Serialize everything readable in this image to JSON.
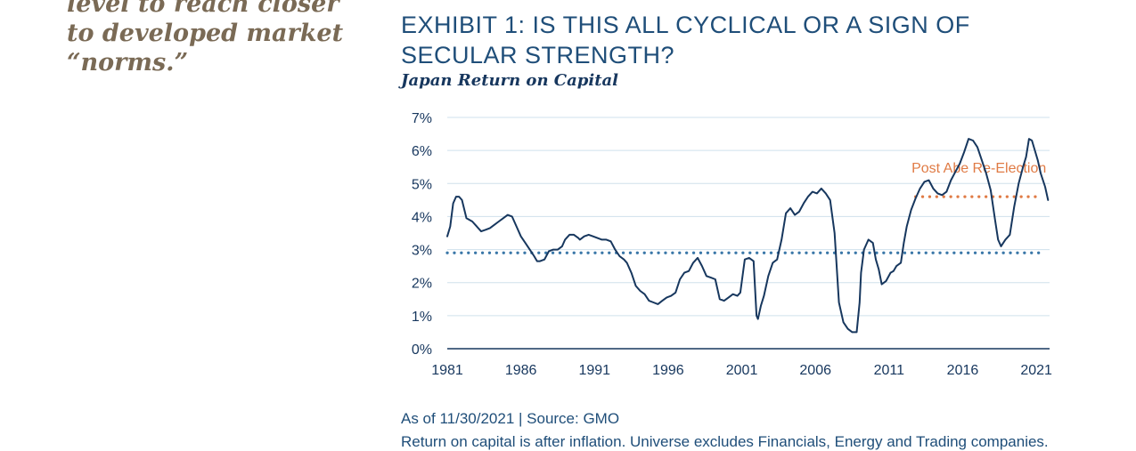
{
  "pullquote": {
    "lines": [
      "level to reach closer",
      "to developed market",
      "“norms.”"
    ]
  },
  "exhibit": {
    "title": "EXHIBIT 1: IS THIS ALL CYCLICAL OR A SIGN OF SECULAR STRENGTH?",
    "subtitle": "Japan Return on Capital",
    "source": "As of 11/30/2021 | Source: GMO",
    "footnote": "Return on capital is after inflation. Universe excludes Financials, Energy and Trading companies."
  },
  "colors": {
    "line": "#17375e",
    "average": "#3a77a8",
    "post_abe": "#e07b45",
    "grid": "#cfe0ec",
    "axis": "#17375e",
    "annotation": "#e07b45"
  },
  "chart_data": {
    "type": "line",
    "title": "Japan Return on Capital",
    "xlabel": "",
    "ylabel": "",
    "xlim": [
      1981,
      2021.9
    ],
    "ylim": [
      0,
      7
    ],
    "x_ticks": [
      1981,
      1986,
      1991,
      1996,
      2001,
      2006,
      2011,
      2016,
      2021
    ],
    "x_tick_labels": [
      "1981",
      "1986",
      "1991",
      "1996",
      "2001",
      "2006",
      "2011",
      "2016",
      "2021"
    ],
    "y_ticks": [
      0,
      1,
      2,
      3,
      4,
      5,
      6,
      7
    ],
    "y_tick_labels": [
      "0%",
      "1%",
      "2%",
      "3%",
      "4%",
      "5%",
      "6%",
      "7%"
    ],
    "grid": "horizontal",
    "series": [
      {
        "values_x": [
          1981.0,
          1981.2,
          1981.4,
          1981.6,
          1981.8,
          1982.0,
          1982.3,
          1982.5,
          1982.7,
          1983.0,
          1983.3,
          1983.6,
          1983.9,
          1984.2,
          1984.5,
          1984.8,
          1985.1,
          1985.4,
          1985.7,
          1986.0,
          1986.3,
          1986.6,
          1986.9,
          1987.1,
          1987.3,
          1987.6,
          1987.9,
          1988.2,
          1988.5,
          1988.8,
          1989.0,
          1989.3,
          1989.6,
          1989.9,
          1990.0,
          1990.3,
          1990.6,
          1990.9,
          1991.2,
          1991.5,
          1991.8,
          1992.1,
          1992.4,
          1992.7,
          1993.0,
          1993.2,
          1993.5,
          1993.8,
          1994.1,
          1994.4,
          1994.7,
          1995.0,
          1995.3,
          1995.6,
          1995.9,
          1996.2,
          1996.5,
          1996.8,
          1997.1,
          1997.4,
          1997.7,
          1998.0,
          1998.3,
          1998.6,
          1998.9,
          1999.2,
          1999.5,
          1999.8,
          2000.1,
          2000.4,
          2000.7,
          2000.9,
          2001.2,
          2001.5,
          2001.8,
          2002.0,
          2002.1,
          2002.3,
          2002.5,
          2002.8,
          2003.1,
          2003.4,
          2003.7,
          2004.0,
          2004.3,
          2004.6,
          2004.9,
          2005.2,
          2005.5,
          2005.8,
          2006.1,
          2006.4,
          2006.7,
          2007.0,
          2007.3,
          2007.6,
          2007.9,
          2008.2,
          2008.5,
          2008.8,
          2009.0,
          2009.1,
          2009.3,
          2009.6,
          2009.9,
          2010.1,
          2010.3,
          2010.5,
          2010.8,
          2011.1,
          2011.3,
          2011.5,
          2011.8,
          2012.0,
          2012.2,
          2012.5,
          2012.8,
          2013.1,
          2013.4,
          2013.7,
          2014.0,
          2014.3,
          2014.6,
          2014.9,
          2015.2,
          2015.5,
          2015.8,
          2016.1,
          2016.4,
          2016.7,
          2017.0,
          2017.3,
          2017.6,
          2017.9,
          2018.2,
          2018.4,
          2018.6,
          2018.9,
          2019.2,
          2019.5,
          2019.8,
          2020.1,
          2020.3,
          2020.5,
          2020.7,
          2020.9,
          2021.1,
          2021.3,
          2021.6,
          2021.8
        ],
        "values_y": [
          3.4,
          3.7,
          4.4,
          4.6,
          4.6,
          4.5,
          3.95,
          3.9,
          3.85,
          3.7,
          3.55,
          3.6,
          3.65,
          3.75,
          3.85,
          3.95,
          4.05,
          4.0,
          3.7,
          3.4,
          3.2,
          3.0,
          2.8,
          2.65,
          2.65,
          2.7,
          2.95,
          3.0,
          3.0,
          3.1,
          3.3,
          3.45,
          3.45,
          3.35,
          3.3,
          3.4,
          3.45,
          3.4,
          3.35,
          3.3,
          3.3,
          3.25,
          3.0,
          2.8,
          2.7,
          2.6,
          2.3,
          1.9,
          1.75,
          1.65,
          1.45,
          1.4,
          1.35,
          1.45,
          1.55,
          1.6,
          1.7,
          2.1,
          2.3,
          2.35,
          2.6,
          2.75,
          2.5,
          2.2,
          2.15,
          2.1,
          1.5,
          1.45,
          1.55,
          1.65,
          1.6,
          1.7,
          2.7,
          2.75,
          2.65,
          1.0,
          0.9,
          1.3,
          1.6,
          2.2,
          2.6,
          2.7,
          3.3,
          4.1,
          4.25,
          4.05,
          4.15,
          4.4,
          4.6,
          4.75,
          4.7,
          4.85,
          4.7,
          4.5,
          3.5,
          1.4,
          0.8,
          0.6,
          0.5,
          0.5,
          1.4,
          2.3,
          3.0,
          3.3,
          3.2,
          2.7,
          2.4,
          1.95,
          2.05,
          2.3,
          2.35,
          2.5,
          2.6,
          3.2,
          3.7,
          4.2,
          4.55,
          4.85,
          5.05,
          5.1,
          4.85,
          4.7,
          4.65,
          4.75,
          5.1,
          5.35,
          5.6,
          5.95,
          6.35,
          6.3,
          6.1,
          5.7,
          5.3,
          4.8,
          3.9,
          3.3,
          3.1,
          3.3,
          3.45,
          4.3,
          5.0,
          5.5,
          5.8,
          6.35,
          6.3,
          6.0,
          5.7,
          5.3,
          4.9,
          4.5
        ]
      }
    ],
    "reference_lines": [
      {
        "kind": "average",
        "y": 2.9,
        "x_start": 1981,
        "x_end": 2021.4
      },
      {
        "kind": "post_abe_average",
        "label": "Post Abe Re-Election",
        "y": 4.6,
        "x_start": 2012.8,
        "x_end": 2021.4
      }
    ],
    "annotations": [
      {
        "text": "Post Abe Re-Election"
      }
    ]
  }
}
